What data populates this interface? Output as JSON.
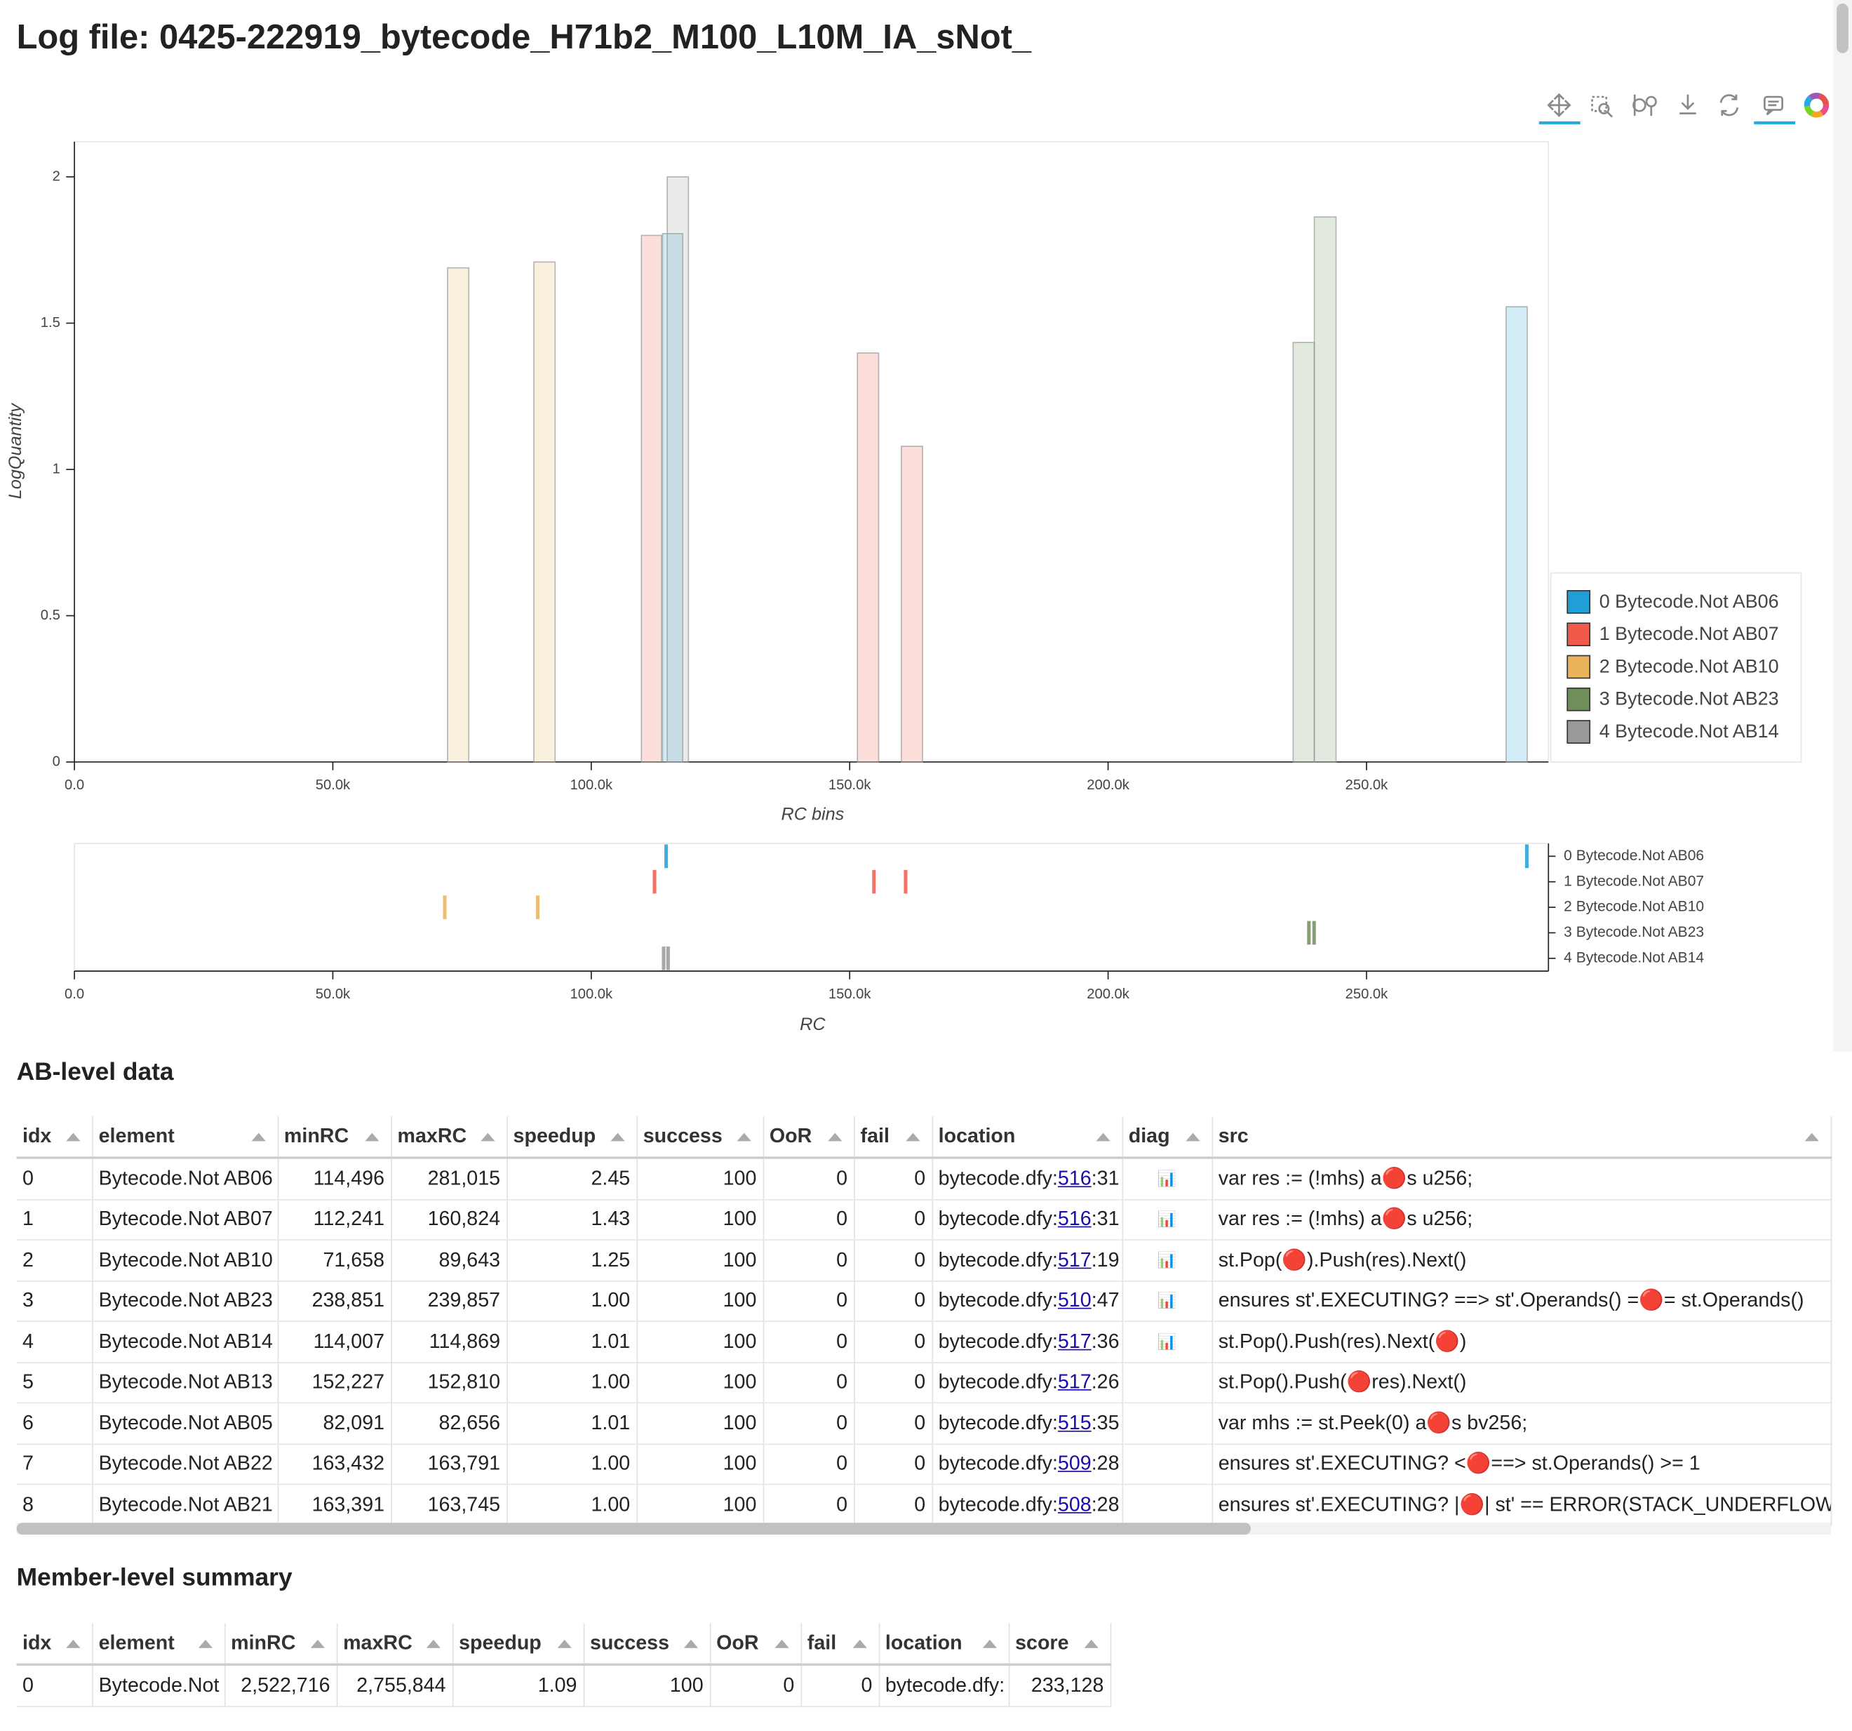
{
  "title": "Log file: 0425-222919_bytecode_H71b2_M100_L10M_IA_sNot_",
  "chart_data": [
    {
      "type": "bar",
      "x_label": "RC bins",
      "y_label": "LogQuantity",
      "xlim": [
        0,
        285200
      ],
      "ylim": [
        0,
        2.12
      ],
      "xticks": [
        {
          "value": 0,
          "label": "0.0"
        },
        {
          "value": 50000,
          "label": "50.0k"
        },
        {
          "value": 100000,
          "label": "100.0k"
        },
        {
          "value": 150000,
          "label": "150.0k"
        },
        {
          "value": 200000,
          "label": "200.0k"
        },
        {
          "value": 250000,
          "label": "250.0k"
        }
      ],
      "yticks": [
        0,
        0.5,
        1,
        1.5,
        2
      ],
      "legend": "right",
      "series": [
        {
          "name": "0 Bytecode.Not AB06",
          "color": "#1f9fd6",
          "x0": [
            113800,
            277000
          ],
          "x1": [
            117700,
            281100
          ],
          "values": [
            1.806,
            1.556
          ]
        },
        {
          "name": "1 Bytecode.Not AB07",
          "color": "#f15a4a",
          "x0": [
            109700,
            151500,
            160000
          ],
          "x1": [
            113600,
            155600,
            164100
          ],
          "values": [
            1.8,
            1.398,
            1.079
          ]
        },
        {
          "name": "2 Bytecode.Not AB10",
          "color": "#e8b35a",
          "x0": [
            72200,
            88900
          ],
          "x1": [
            76300,
            93000
          ],
          "values": [
            1.689,
            1.709
          ]
        },
        {
          "name": "3 Bytecode.Not AB23",
          "color": "#6f8f5a",
          "x0": [
            235800,
            239900
          ],
          "x1": [
            239900,
            244100
          ],
          "values": [
            1.434,
            1.863
          ]
        },
        {
          "name": "4 Bytecode.Not AB14",
          "color": "#999999",
          "x0": [
            114700
          ],
          "x1": [
            118800
          ],
          "values": [
            2.0
          ]
        }
      ]
    },
    {
      "type": "strip",
      "x_label": "RC",
      "xlim": [
        0,
        285200
      ],
      "xticks": [
        {
          "value": 0,
          "label": "0.0"
        },
        {
          "value": 50000,
          "label": "50.0k"
        },
        {
          "value": 100000,
          "label": "100.0k"
        },
        {
          "value": 150000,
          "label": "150.0k"
        },
        {
          "value": 200000,
          "label": "200.0k"
        },
        {
          "value": 250000,
          "label": "250.0k"
        }
      ],
      "categories": [
        "0 Bytecode.Not AB06",
        "1 Bytecode.Not AB07",
        "2 Bytecode.Not AB10",
        "3 Bytecode.Not AB23",
        "4 Bytecode.Not AB14"
      ],
      "series": [
        {
          "color": "#1f9fd6",
          "values": [
            114496,
            281015
          ]
        },
        {
          "color": "#f15a4a",
          "values": [
            112241,
            154700,
            160824
          ]
        },
        {
          "color": "#e8b35a",
          "values": [
            71658,
            89643
          ]
        },
        {
          "color": "#6f8f5a",
          "values": [
            238851,
            239857
          ]
        },
        {
          "color": "#999999",
          "values": [
            114007,
            114869
          ]
        }
      ]
    }
  ],
  "tables": [
    {
      "heading": "AB-level data",
      "columns": [
        "idx",
        "element",
        "minRC",
        "maxRC",
        "speedup",
        "success",
        "OoR",
        "fail",
        "location",
        "diag",
        "src"
      ],
      "rows": [
        [
          "0",
          "Bytecode.Not AB06",
          "114,496",
          "281,015",
          "2.45",
          "100",
          "0",
          "0",
          {
            "prefix": "bytecode.dfy:",
            "link": "516",
            "suffix": ":31"
          },
          "📊",
          "var res := (!mhs) a🔴s u256;"
        ],
        [
          "1",
          "Bytecode.Not AB07",
          "112,241",
          "160,824",
          "1.43",
          "100",
          "0",
          "0",
          {
            "prefix": "bytecode.dfy:",
            "link": "516",
            "suffix": ":31"
          },
          "📊",
          "var res := (!mhs) a🔴s u256;"
        ],
        [
          "2",
          "Bytecode.Not AB10",
          "71,658",
          "89,643",
          "1.25",
          "100",
          "0",
          "0",
          {
            "prefix": "bytecode.dfy:",
            "link": "517",
            "suffix": ":19"
          },
          "📊",
          "st.Pop(🔴).Push(res).Next()"
        ],
        [
          "3",
          "Bytecode.Not AB23",
          "238,851",
          "239,857",
          "1.00",
          "100",
          "0",
          "0",
          {
            "prefix": "bytecode.dfy:",
            "link": "510",
            "suffix": ":47"
          },
          "📊",
          "ensures st'.EXECUTING? ==> st'.Operands() =🔴= st.Operands()"
        ],
        [
          "4",
          "Bytecode.Not AB14",
          "114,007",
          "114,869",
          "1.01",
          "100",
          "0",
          "0",
          {
            "prefix": "bytecode.dfy:",
            "link": "517",
            "suffix": ":36"
          },
          "📊",
          "st.Pop().Push(res).Next(🔴)"
        ],
        [
          "5",
          "Bytecode.Not AB13",
          "152,227",
          "152,810",
          "1.00",
          "100",
          "0",
          "0",
          {
            "prefix": "bytecode.dfy:",
            "link": "517",
            "suffix": ":26"
          },
          null,
          "st.Pop().Push(🔴res).Next()"
        ],
        [
          "6",
          "Bytecode.Not AB05",
          "82,091",
          "82,656",
          "1.01",
          "100",
          "0",
          "0",
          {
            "prefix": "bytecode.dfy:",
            "link": "515",
            "suffix": ":35"
          },
          null,
          "var mhs := st.Peek(0) a🔴s bv256;"
        ],
        [
          "7",
          "Bytecode.Not AB22",
          "163,432",
          "163,791",
          "1.00",
          "100",
          "0",
          "0",
          {
            "prefix": "bytecode.dfy:",
            "link": "509",
            "suffix": ":28"
          },
          null,
          "ensures st'.EXECUTING? <🔴==> st.Operands() >= 1"
        ],
        [
          "8",
          "Bytecode.Not AB21",
          "163,391",
          "163,745",
          "1.00",
          "100",
          "0",
          "0",
          {
            "prefix": "bytecode.dfy:",
            "link": "508",
            "suffix": ":28"
          },
          null,
          "ensures st'.EXECUTING? |🔴| st' == ERROR(STACK_UNDERFLOW)"
        ]
      ]
    },
    {
      "heading": "Member-level summary",
      "columns": [
        "idx",
        "element",
        "minRC",
        "maxRC",
        "speedup",
        "success",
        "OoR",
        "fail",
        "location",
        "score"
      ],
      "rows": [
        [
          "0",
          "Bytecode.Not",
          "2,522,716",
          "2,755,844",
          "1.09",
          "100",
          "0",
          "0",
          "bytecode.dfy:",
          "233,128"
        ]
      ]
    }
  ]
}
